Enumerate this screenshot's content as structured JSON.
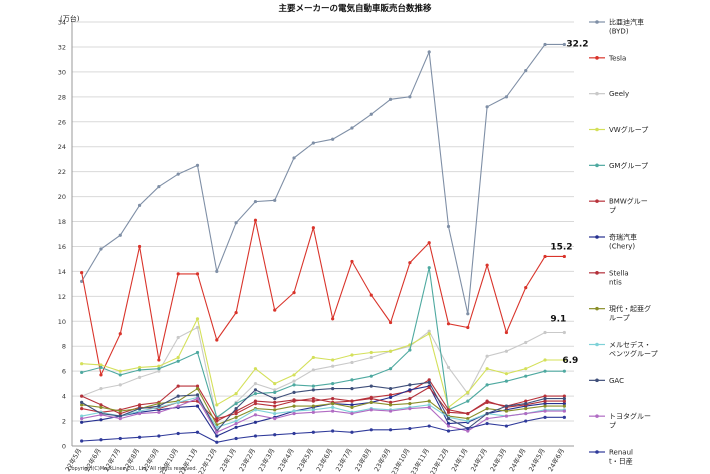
{
  "chart_data": {
    "type": "line",
    "title": "主要メーカーの電気自動車販売台数推移",
    "ylabel": "(万台)",
    "ylim": [
      0,
      34
    ],
    "yticks": [
      0,
      2,
      4,
      6,
      8,
      10,
      12,
      14,
      16,
      18,
      20,
      22,
      24,
      26,
      28,
      30,
      32,
      34
    ],
    "grid": true,
    "legend_position": "right",
    "categories": [
      "22年5月",
      "22年6月",
      "22年7月",
      "22年8月",
      "22年9月",
      "22年10月",
      "22年11月",
      "22年12月",
      "23年1月",
      "23年2月",
      "23年3月",
      "23年4月",
      "23年5月",
      "23年6月",
      "23年7月",
      "23年8月",
      "23年9月",
      "23年10月",
      "23年11月",
      "23年12月",
      "24年1月",
      "24年2月",
      "24年3月",
      "24年4月",
      "24年5月",
      "24年6月"
    ],
    "annotations": [
      {
        "text": "32.2",
        "series": "比亜迪汽車(BYD)"
      },
      {
        "text": "15.2",
        "series": "Tesla"
      },
      {
        "text": "9.1",
        "series": "Geely"
      },
      {
        "text": "6.9",
        "series": "VWグループ"
      }
    ],
    "copyright": "Copyright(C)MarkLines CO., Ltd. All rights reserved.",
    "series": [
      {
        "name": "比亜迪汽車(BYD)",
        "color": "#7f8fa6",
        "values": [
          13.2,
          15.8,
          16.9,
          19.3,
          20.8,
          21.8,
          22.5,
          14.0,
          17.9,
          19.6,
          19.7,
          23.1,
          24.3,
          24.6,
          25.5,
          26.6,
          27.8,
          28.0,
          31.6,
          17.6,
          10.6,
          27.2,
          28.0,
          30.1,
          32.2,
          32.2
        ]
      },
      {
        "name": "Tesla",
        "color": "#d9342b",
        "values": [
          13.9,
          5.7,
          9.0,
          16.0,
          6.9,
          13.8,
          13.8,
          8.5,
          10.7,
          18.1,
          10.9,
          12.3,
          17.5,
          10.2,
          14.8,
          12.1,
          9.9,
          14.7,
          16.3,
          9.8,
          9.5,
          14.5,
          9.1,
          12.7,
          15.2,
          15.2
        ]
      },
      {
        "name": "Geely",
        "color": "#c9c9c9",
        "values": [
          4.0,
          4.6,
          4.9,
          5.5,
          6.0,
          8.7,
          9.5,
          2.2,
          3.5,
          5.0,
          4.5,
          5.2,
          6.1,
          6.4,
          6.7,
          7.1,
          7.6,
          8.0,
          9.2,
          6.3,
          4.2,
          7.2,
          7.6,
          8.3,
          9.1,
          9.1
        ]
      },
      {
        "name": "VWグループ",
        "color": "#d4e05a",
        "values": [
          6.6,
          6.5,
          6.0,
          6.3,
          6.4,
          7.1,
          10.2,
          3.3,
          4.2,
          6.2,
          5.0,
          5.7,
          7.1,
          6.9,
          7.3,
          7.5,
          7.6,
          8.1,
          9.0,
          3.1,
          4.3,
          6.2,
          5.8,
          6.2,
          6.9,
          6.9
        ]
      },
      {
        "name": "GMグループ",
        "color": "#4ea9a0",
        "values": [
          5.9,
          6.3,
          5.7,
          6.1,
          6.2,
          6.8,
          7.5,
          2.3,
          3.4,
          4.2,
          4.3,
          4.9,
          4.8,
          5.0,
          5.3,
          5.6,
          6.2,
          7.7,
          14.3,
          2.9,
          3.6,
          4.9,
          5.2,
          5.6,
          6.0,
          6.0
        ]
      },
      {
        "name": "BMWグループ",
        "color": "#b8323a",
        "values": [
          3.0,
          2.7,
          2.9,
          3.3,
          3.5,
          4.8,
          4.8,
          2.2,
          2.6,
          3.4,
          3.2,
          3.6,
          3.8,
          3.5,
          3.6,
          3.9,
          4.1,
          4.4,
          5.3,
          2.9,
          2.6,
          3.5,
          3.2,
          3.6,
          4.0,
          4.0
        ]
      },
      {
        "name": "奇瑞汽車(Chery)",
        "color": "#25308f",
        "values": [
          1.9,
          2.1,
          2.4,
          2.7,
          2.9,
          3.1,
          3.2,
          0.8,
          1.5,
          1.9,
          2.3,
          2.8,
          3.1,
          3.4,
          3.3,
          3.5,
          3.9,
          4.5,
          4.8,
          1.8,
          1.9,
          2.6,
          2.9,
          3.2,
          3.4,
          3.4
        ]
      },
      {
        "name": "Stellantis",
        "color": "#b3303a",
        "values": [
          4.0,
          3.3,
          2.6,
          3.1,
          3.0,
          3.5,
          3.6,
          2.0,
          2.8,
          3.6,
          3.5,
          3.7,
          3.6,
          3.8,
          3.6,
          3.8,
          3.5,
          3.8,
          4.7,
          2.7,
          2.6,
          3.6,
          3.1,
          3.3,
          3.6,
          3.6
        ]
      },
      {
        "name": "現代・起亜グループ",
        "color": "#8a8f2a",
        "values": [
          3.3,
          3.1,
          2.8,
          3.0,
          3.4,
          3.6,
          4.6,
          1.7,
          2.3,
          3.0,
          2.9,
          3.2,
          3.2,
          3.4,
          3.1,
          3.5,
          3.3,
          3.4,
          3.6,
          2.4,
          2.2,
          3.0,
          2.8,
          3.0,
          3.2,
          3.2
        ]
      },
      {
        "name": "メルセデス・ベンツグループ",
        "color": "#7fd2d8",
        "values": [
          2.4,
          2.7,
          2.4,
          2.8,
          3.1,
          3.5,
          3.9,
          1.5,
          2.0,
          2.9,
          2.6,
          2.8,
          2.9,
          3.1,
          2.7,
          3.0,
          2.9,
          3.1,
          3.3,
          2.3,
          2.0,
          2.6,
          2.4,
          2.6,
          2.9,
          2.9
        ]
      },
      {
        "name": "GAC",
        "color": "#3f4f7a",
        "values": [
          3.5,
          2.6,
          2.4,
          3.0,
          3.2,
          4.0,
          4.1,
          1.2,
          3.0,
          4.5,
          3.8,
          4.3,
          4.5,
          4.6,
          4.6,
          4.8,
          4.6,
          4.9,
          5.1,
          2.2,
          1.4,
          2.6,
          3.2,
          3.4,
          3.8,
          3.8
        ]
      },
      {
        "name": "トヨタグループ",
        "color": "#b06bc3",
        "values": [
          2.2,
          2.5,
          2.2,
          2.6,
          2.7,
          3.2,
          3.8,
          1.1,
          1.8,
          2.5,
          2.2,
          2.6,
          2.7,
          2.8,
          2.6,
          2.9,
          2.8,
          3.0,
          3.1,
          1.6,
          1.2,
          2.2,
          2.4,
          2.6,
          2.8,
          2.8
        ]
      },
      {
        "name": "Renault・日産",
        "color": "#2f3a9a",
        "values": [
          0.4,
          0.5,
          0.6,
          0.7,
          0.8,
          1.0,
          1.1,
          0.3,
          0.6,
          0.8,
          0.9,
          1.0,
          1.1,
          1.2,
          1.1,
          1.3,
          1.3,
          1.4,
          1.6,
          1.2,
          1.4,
          1.8,
          1.6,
          2.0,
          2.3,
          2.3
        ]
      }
    ]
  }
}
